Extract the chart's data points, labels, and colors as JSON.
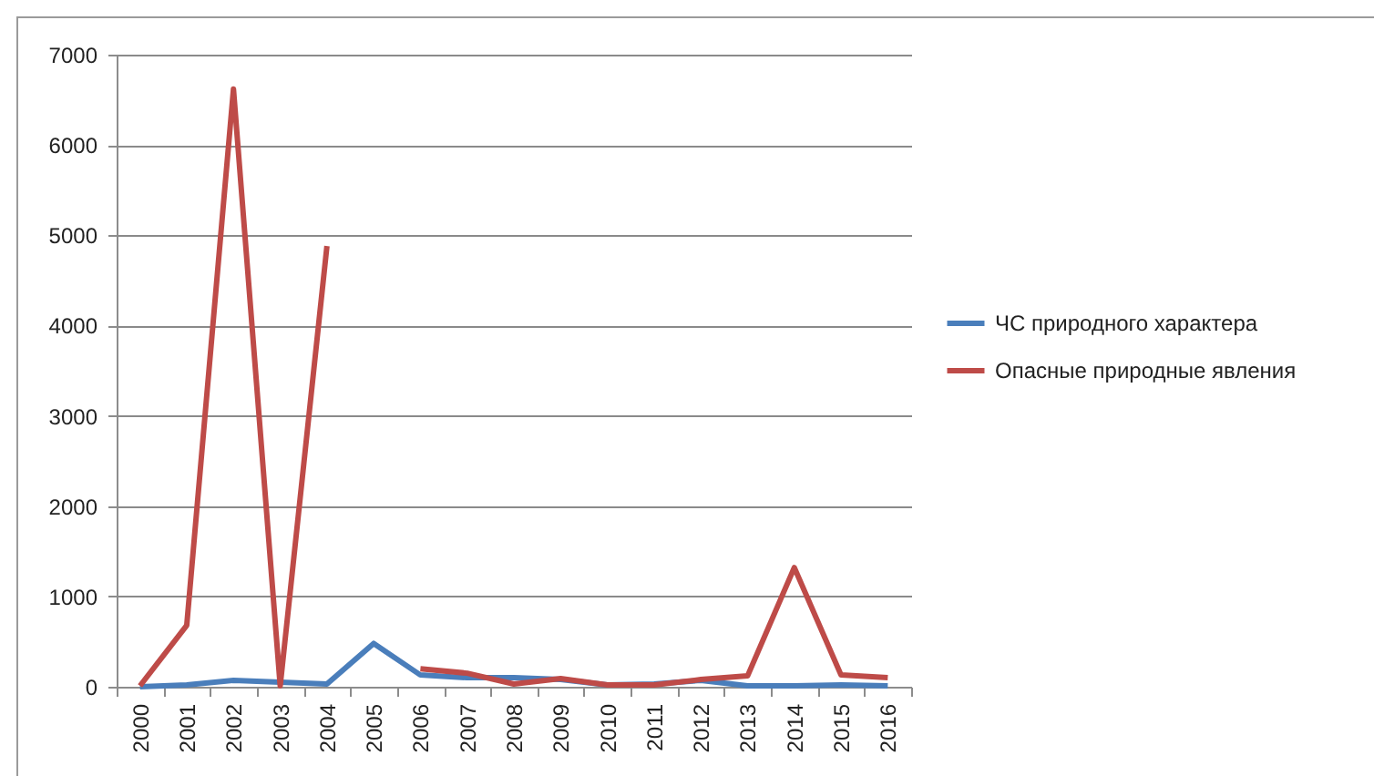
{
  "chart_data": {
    "type": "line",
    "categories": [
      "2000",
      "2001",
      "2002",
      "2003",
      "2004",
      "2005",
      "2006",
      "2007",
      "2008",
      "2009",
      "2010",
      "2011",
      "2012",
      "2013",
      "2014",
      "2015",
      "2016"
    ],
    "series": [
      {
        "name": "ЧС природного характера",
        "color": "#4a7ebb",
        "values": [
          0,
          20,
          70,
          50,
          30,
          480,
          130,
          100,
          100,
          80,
          20,
          30,
          70,
          10,
          10,
          20,
          10
        ]
      },
      {
        "name": "Опасные природные явления",
        "color": "#be4b48",
        "values": [
          10,
          680,
          6620,
          10,
          4880,
          null,
          200,
          150,
          30,
          90,
          20,
          20,
          80,
          120,
          1320,
          130,
          100
        ]
      }
    ],
    "ylim": [
      0,
      7000
    ],
    "yticks": [
      0,
      1000,
      2000,
      3000,
      4000,
      5000,
      6000,
      7000
    ],
    "grid": "y",
    "legend": "right"
  }
}
